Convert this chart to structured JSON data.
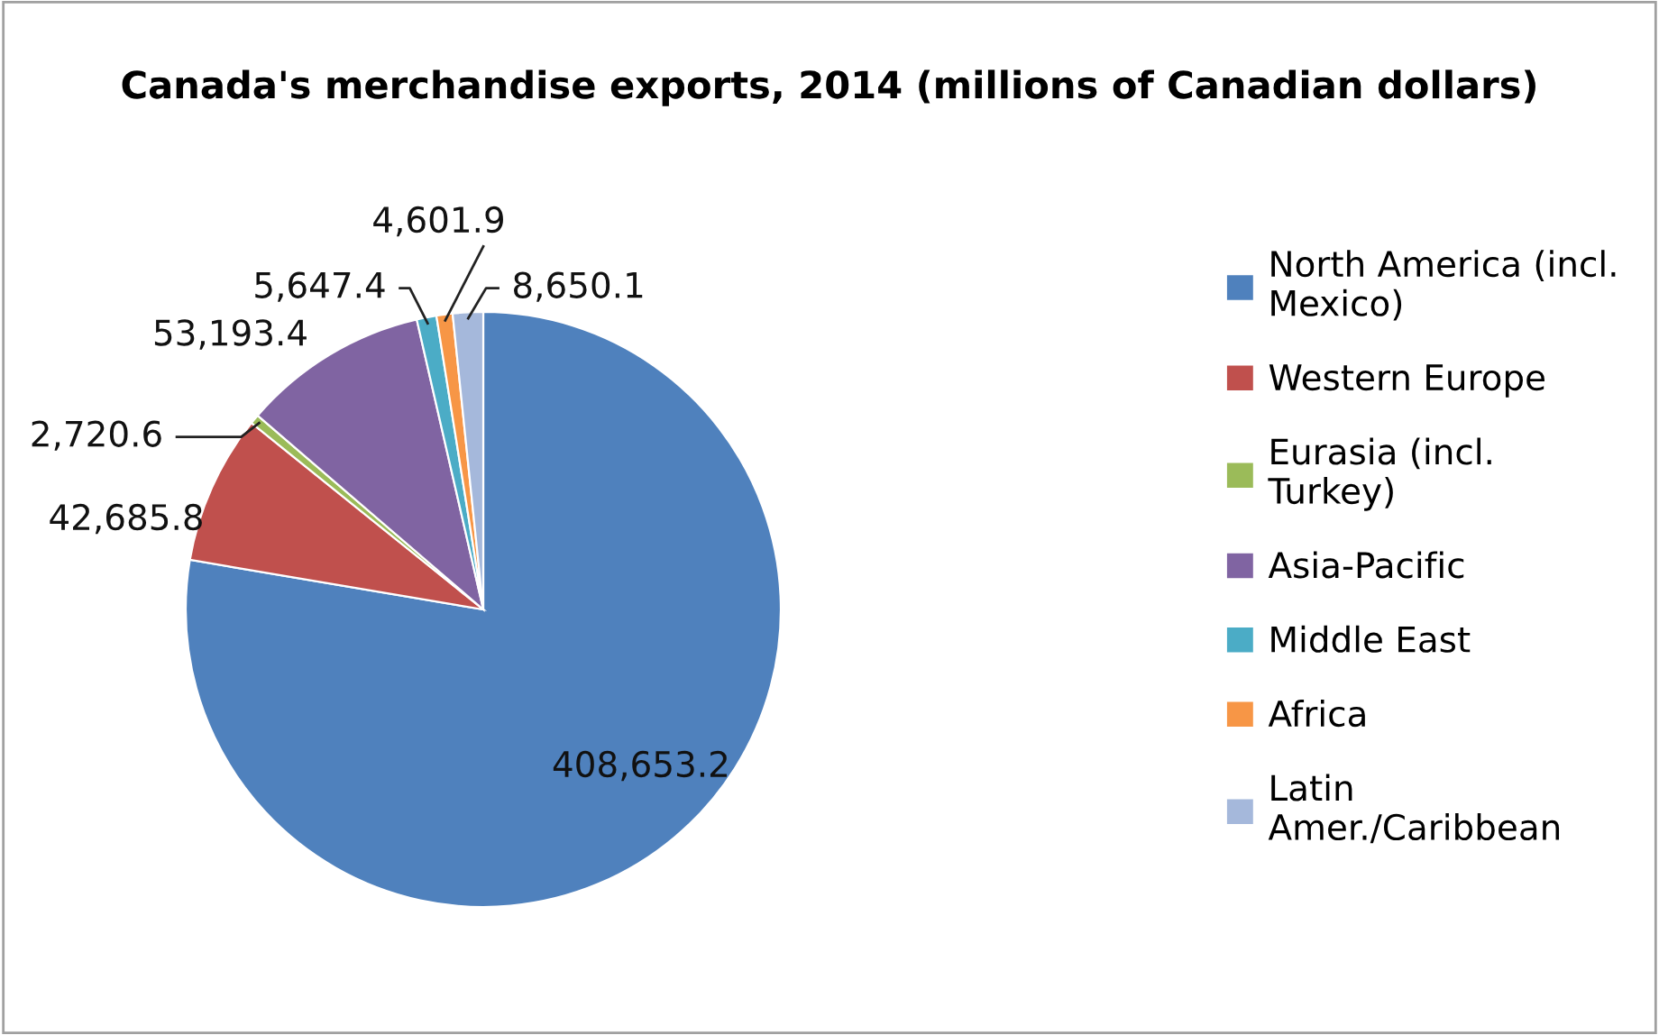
{
  "chart_data": {
    "type": "pie",
    "title": "Canada's merchandise exports, 2014 (millions of Canadian dollars)",
    "categories": [
      "North America (incl. Mexico)",
      "Western Europe",
      "Eurasia (incl. Turkey)",
      "Asia-Pacific",
      "Middle East",
      "Africa",
      "Latin Amer./Caribbean"
    ],
    "values": [
      408653.2,
      42685.8,
      2720.6,
      53193.4,
      5647.4,
      4601.9,
      8650.1
    ],
    "value_labels": [
      "408,653.2",
      "42,685.8",
      "2,720.6",
      "53,193.4",
      "5,647.4",
      "4,601.9",
      "8,650.1"
    ],
    "colors": [
      "#4f81bd",
      "#c0504d",
      "#9bbb59",
      "#8064a2",
      "#4bacc6",
      "#f79646",
      "#a5b8db"
    ],
    "legend": "right"
  }
}
